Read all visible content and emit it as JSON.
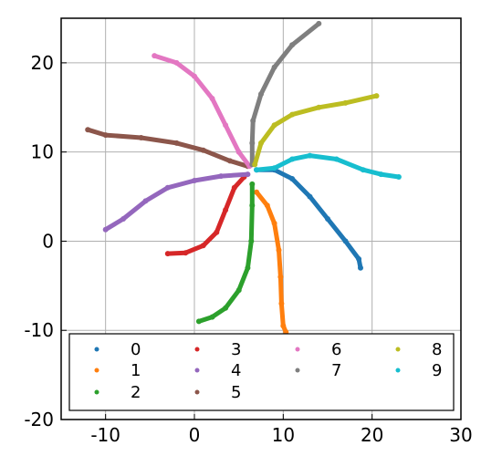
{
  "chart_data": {
    "type": "scatter",
    "title": "",
    "xlabel": "",
    "ylabel": "",
    "xlim": [
      -15,
      30
    ],
    "ylim": [
      -20,
      25
    ],
    "x_ticks": [
      -10,
      0,
      10,
      20,
      30
    ],
    "y_ticks": [
      -20,
      -10,
      0,
      10,
      20
    ],
    "x_tick_labels": [
      "-10",
      "0",
      "10",
      "20",
      "30"
    ],
    "y_tick_labels": [
      "-20",
      "-10",
      "0",
      "10",
      "20"
    ],
    "grid": true,
    "legend_position": "lower-center",
    "legend_columns": 4,
    "series": [
      {
        "name": "0",
        "color": "#1f77b4",
        "points": [
          [
            7,
            8
          ],
          [
            9,
            8
          ],
          [
            11,
            7
          ],
          [
            13,
            5
          ],
          [
            15,
            2.5
          ],
          [
            17,
            0
          ],
          [
            18.5,
            -2
          ],
          [
            18.7,
            -3
          ]
        ]
      },
      {
        "name": "1",
        "color": "#ff7f0e",
        "points": [
          [
            7,
            5.5
          ],
          [
            8.2,
            4
          ],
          [
            9,
            2
          ],
          [
            9.5,
            -1
          ],
          [
            9.7,
            -4
          ],
          [
            9.8,
            -7
          ],
          [
            10,
            -9.5
          ],
          [
            10.3,
            -10.2
          ]
        ]
      },
      {
        "name": "2",
        "color": "#2ca02c",
        "points": [
          [
            6.5,
            6.4
          ],
          [
            6.5,
            4
          ],
          [
            6.4,
            0
          ],
          [
            6,
            -3
          ],
          [
            5,
            -5.5
          ],
          [
            3.5,
            -7.5
          ],
          [
            2,
            -8.5
          ],
          [
            0.5,
            -9
          ]
        ]
      },
      {
        "name": "3",
        "color": "#d62728",
        "points": [
          [
            5.6,
            7.2
          ],
          [
            4.5,
            6
          ],
          [
            3.5,
            3.5
          ],
          [
            2.5,
            1
          ],
          [
            1,
            -0.5
          ],
          [
            -1,
            -1.3
          ],
          [
            -3,
            -1.4
          ]
        ]
      },
      {
        "name": "4",
        "color": "#9467bd",
        "points": [
          [
            6,
            7.5
          ],
          [
            3,
            7.3
          ],
          [
            0,
            6.8
          ],
          [
            -3,
            6
          ],
          [
            -5.5,
            4.5
          ],
          [
            -8,
            2.5
          ],
          [
            -10,
            1.3
          ]
        ]
      },
      {
        "name": "5",
        "color": "#8c564b",
        "points": [
          [
            6,
            8.4
          ],
          [
            4,
            9
          ],
          [
            1,
            10.2
          ],
          [
            -2,
            11
          ],
          [
            -6,
            11.6
          ],
          [
            -10,
            11.9
          ],
          [
            -12,
            12.5
          ]
        ]
      },
      {
        "name": "6",
        "color": "#e377c2",
        "points": [
          [
            6.2,
            8.4
          ],
          [
            5,
            10
          ],
          [
            3.5,
            13
          ],
          [
            2,
            16
          ],
          [
            0,
            18.5
          ],
          [
            -2,
            20
          ],
          [
            -4.5,
            20.8
          ]
        ]
      },
      {
        "name": "7",
        "color": "#7f7f7f",
        "points": [
          [
            6.5,
            8.6
          ],
          [
            6.5,
            11
          ],
          [
            6.6,
            13.5
          ],
          [
            7.5,
            16.5
          ],
          [
            9,
            19.5
          ],
          [
            11,
            22
          ],
          [
            14,
            24.4
          ]
        ]
      },
      {
        "name": "8",
        "color": "#bcbd22",
        "points": [
          [
            6.8,
            8.6
          ],
          [
            7.5,
            11
          ],
          [
            9,
            13
          ],
          [
            11,
            14.2
          ],
          [
            14,
            15
          ],
          [
            17,
            15.5
          ],
          [
            20.5,
            16.3
          ]
        ]
      },
      {
        "name": "9",
        "color": "#17becf",
        "points": [
          [
            7,
            8
          ],
          [
            9,
            8.2
          ],
          [
            11,
            9.2
          ],
          [
            13,
            9.6
          ],
          [
            16,
            9.2
          ],
          [
            19,
            8
          ],
          [
            21,
            7.5
          ],
          [
            23,
            7.2
          ]
        ]
      }
    ]
  }
}
